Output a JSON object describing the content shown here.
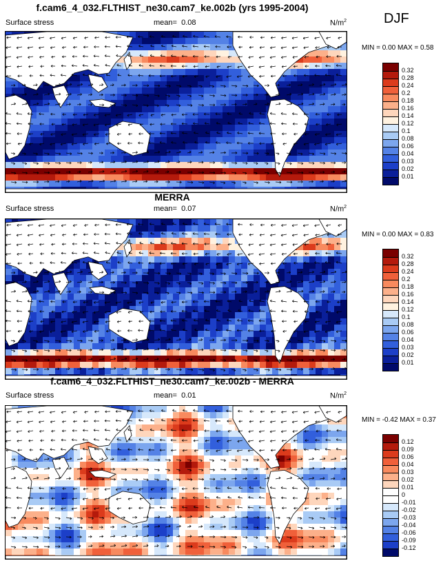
{
  "season": "DJF",
  "panels": [
    {
      "title": "f.cam6_4_032.FLTHIST_ne30.cam7_ke.002b (yrs 1995-2004)",
      "variable": "Surface stress",
      "mean_label": "mean=",
      "mean_value": "0.08",
      "units_base": "N/m",
      "units_exp": "2",
      "minmax": "MIN =  0.00 MAX =  0.58",
      "colorbar_levels": [
        "0.32",
        "0.28",
        "0.24",
        "0.2",
        "0.18",
        "0.16",
        "0.14",
        "0.12",
        "0.1",
        "0.08",
        "0.06",
        "0.04",
        "0.03",
        "0.02",
        "0.01"
      ]
    },
    {
      "title": "MERRA",
      "variable": "Surface stress",
      "mean_label": "mean=",
      "mean_value": "0.07",
      "units_base": "N/m",
      "units_exp": "2",
      "minmax": "MIN =  0.00 MAX =  0.83",
      "colorbar_levels": [
        "0.32",
        "0.28",
        "0.24",
        "0.2",
        "0.18",
        "0.16",
        "0.14",
        "0.12",
        "0.1",
        "0.08",
        "0.06",
        "0.04",
        "0.03",
        "0.02",
        "0.01"
      ]
    },
    {
      "title": "f.cam6_4_032.FLTHIST_ne30.cam7_ke.002b - MERRA",
      "variable": "Surface stress",
      "mean_label": "mean=",
      "mean_value": "0.01",
      "units_base": "N/m",
      "units_exp": "2",
      "minmax": "MIN = -0.42 MAX =  0.37",
      "colorbar_levels": [
        "0.12",
        "0.09",
        "0.06",
        "0.04",
        "0.03",
        "0.02",
        "0.01",
        "0",
        "-0.01",
        "-0.02",
        "-0.03",
        "-0.04",
        "-0.06",
        "-0.09",
        "-0.12"
      ]
    }
  ],
  "colors": {
    "abs_scale": [
      "#7a0000",
      "#b41a0c",
      "#dc3b1c",
      "#f0603a",
      "#f88a5e",
      "#fcb08a",
      "#fed6bc",
      "#fff2e0",
      "#d6e8fb",
      "#a9cbf5",
      "#7ca6ee",
      "#5482e6",
      "#325fdc",
      "#1c3fc8",
      "#0a1f9a",
      "#000a6a"
    ],
    "diff_scale": [
      "#7a0000",
      "#b41a0c",
      "#dc3b1c",
      "#f0603a",
      "#f88a5e",
      "#fcb08a",
      "#fed6bc",
      "#ffffff",
      "#ffffff",
      "#d6e8fb",
      "#a9cbf5",
      "#7ca6ee",
      "#5482e6",
      "#325fdc",
      "#1c3fc8",
      "#000a6a"
    ],
    "land": "#ffffff"
  }
}
